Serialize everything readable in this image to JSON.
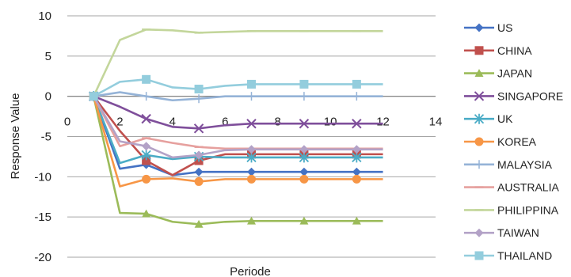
{
  "chart_data": {
    "type": "line",
    "xlabel": "Periode",
    "ylabel": "Response Value",
    "xlim": [
      0,
      14
    ],
    "ylim": [
      -20,
      10
    ],
    "x_ticks": [
      0,
      2,
      4,
      6,
      8,
      10,
      12,
      14
    ],
    "y_ticks": [
      10,
      5,
      0,
      -5,
      -10,
      -15,
      -20
    ],
    "grid": "horizontal",
    "legend_position": "right",
    "x": [
      1,
      2,
      3,
      4,
      5,
      6,
      7,
      8,
      9,
      10,
      11,
      12
    ],
    "series": [
      {
        "name": "US",
        "color": "#4472c4",
        "marker": "diamond",
        "values": [
          0,
          -9.0,
          -8.5,
          -9.8,
          -9.4,
          -9.4,
          -9.4,
          -9.4,
          -9.4,
          -9.4,
          -9.4,
          -9.4
        ]
      },
      {
        "name": "CHINA",
        "color": "#c0504d",
        "marker": "square",
        "values": [
          0,
          -4.3,
          -8.0,
          -9.8,
          -8.0,
          -7.2,
          -7.2,
          -7.2,
          -7.2,
          -7.2,
          -7.2,
          -7.2
        ]
      },
      {
        "name": "JAPAN",
        "color": "#9bbb59",
        "marker": "triangle",
        "values": [
          0,
          -14.5,
          -14.6,
          -15.6,
          -15.9,
          -15.6,
          -15.5,
          -15.5,
          -15.5,
          -15.5,
          -15.5,
          -15.5
        ]
      },
      {
        "name": "SINGAPORE",
        "color": "#7f4f9b",
        "marker": "x",
        "values": [
          0,
          -1.3,
          -2.8,
          -3.8,
          -4.0,
          -3.6,
          -3.4,
          -3.4,
          -3.4,
          -3.4,
          -3.4,
          -3.4
        ]
      },
      {
        "name": "UK",
        "color": "#4bacc6",
        "marker": "star",
        "values": [
          0,
          -8.3,
          -7.3,
          -7.8,
          -7.5,
          -7.6,
          -7.6,
          -7.6,
          -7.6,
          -7.6,
          -7.6,
          -7.6
        ]
      },
      {
        "name": "KOREA",
        "color": "#f79646",
        "marker": "circle",
        "values": [
          0,
          -11.2,
          -10.3,
          -10.2,
          -10.6,
          -10.3,
          -10.3,
          -10.3,
          -10.3,
          -10.3,
          -10.3,
          -10.3
        ]
      },
      {
        "name": "MALAYSIA",
        "color": "#95b3d7",
        "marker": "plus",
        "values": [
          0,
          0.5,
          0,
          -0.5,
          -0.3,
          0,
          0,
          0,
          0,
          0,
          0,
          0
        ]
      },
      {
        "name": "AUSTRALIA",
        "color": "#e6a09e",
        "marker": "dash",
        "values": [
          0,
          -6.2,
          -5.2,
          -5.8,
          -6.3,
          -6.5,
          -6.5,
          -6.5,
          -6.5,
          -6.5,
          -6.5,
          -6.5
        ]
      },
      {
        "name": "PHILIPPINA",
        "color": "#c3d69b",
        "marker": "dash",
        "values": [
          0,
          7.0,
          8.3,
          8.2,
          7.9,
          8.0,
          8.1,
          8.1,
          8.1,
          8.1,
          8.1,
          8.1
        ]
      },
      {
        "name": "TAIWAN",
        "color": "#b3a2c7",
        "marker": "diamond",
        "values": [
          0,
          -5.6,
          -6.2,
          -7.6,
          -7.3,
          -6.7,
          -6.6,
          -6.6,
          -6.6,
          -6.6,
          -6.6,
          -6.6
        ]
      },
      {
        "name": "THAILAND",
        "color": "#93cddd",
        "marker": "square",
        "values": [
          0,
          1.8,
          2.1,
          1.1,
          0.9,
          1.3,
          1.5,
          1.5,
          1.5,
          1.5,
          1.5,
          1.5
        ]
      }
    ]
  }
}
